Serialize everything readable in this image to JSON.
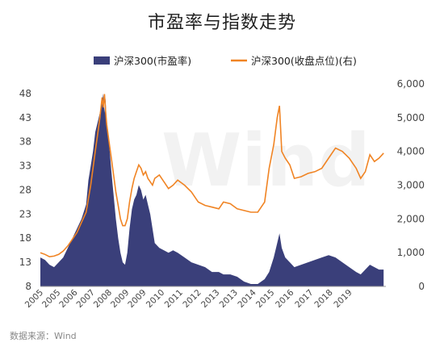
{
  "chart_data": {
    "type": "area+line",
    "title": "市盈率与指数走势",
    "source": "数据来源：Wind",
    "watermark": "Wind",
    "legend": {
      "placement": "top-center",
      "entries": [
        {
          "name": "沪深300(市盈率)",
          "color": "#3a3f7a",
          "kind": "area",
          "axis": "left"
        },
        {
          "name": "沪深300(收盘点位)(右)",
          "color": "#f08424",
          "kind": "line",
          "axis": "right"
        }
      ]
    },
    "y_left": {
      "ticks": [
        "48",
        "43",
        "38",
        "33",
        "28",
        "23",
        "18",
        "13",
        "8"
      ],
      "range": [
        8,
        50
      ]
    },
    "y_right": {
      "ticks": [
        "6,000",
        "5,000",
        "4,000",
        "3,000",
        "2,000",
        "1,000",
        "0"
      ],
      "range": [
        0,
        6000
      ]
    },
    "x_axis": {
      "range": [
        2005.0,
        2020.1
      ],
      "tick_labels": [
        "2005",
        "2005",
        "2006",
        "2007",
        "2008",
        "2009",
        "2009",
        "2010",
        "2011",
        "2012",
        "2013",
        "2013",
        "2014",
        "2015",
        "2016",
        "2017",
        "2018",
        "2019"
      ],
      "tick_positions": [
        2005.0,
        2005.75,
        2006.5,
        2007.25,
        2008.0,
        2008.75,
        2009.5,
        2010.3,
        2011.1,
        2011.9,
        2012.7,
        2013.5,
        2014.3,
        2015.1,
        2015.95,
        2016.8,
        2017.65,
        2018.5
      ]
    },
    "grid": false,
    "series": [
      {
        "name": "沪深300(市盈率)",
        "axis": "left",
        "x": [
          2005.0,
          2005.2,
          2005.4,
          2005.6,
          2005.8,
          2006.0,
          2006.2,
          2006.4,
          2006.6,
          2006.8,
          2007.0,
          2007.1,
          2007.2,
          2007.3,
          2007.4,
          2007.5,
          2007.6,
          2007.7,
          2007.75,
          2007.8,
          2007.85,
          2007.9,
          2008.0,
          2008.1,
          2008.2,
          2008.3,
          2008.4,
          2008.5,
          2008.6,
          2008.7,
          2008.8,
          2008.9,
          2009.0,
          2009.1,
          2009.2,
          2009.3,
          2009.4,
          2009.5,
          2009.6,
          2009.7,
          2009.8,
          2009.9,
          2010.0,
          2010.2,
          2010.4,
          2010.6,
          2010.8,
          2011.0,
          2011.3,
          2011.6,
          2011.9,
          2012.2,
          2012.5,
          2012.8,
          2013.0,
          2013.3,
          2013.6,
          2013.9,
          2014.2,
          2014.5,
          2014.8,
          2015.0,
          2015.2,
          2015.35,
          2015.45,
          2015.55,
          2015.7,
          2015.9,
          2016.1,
          2016.4,
          2016.7,
          2017.0,
          2017.3,
          2017.6,
          2017.9,
          2018.2,
          2018.5,
          2018.8,
          2019.0,
          2019.2,
          2019.4,
          2019.6,
          2019.8,
          2020.0
        ],
        "values": [
          14,
          13.5,
          12.5,
          12,
          13,
          14,
          16,
          18,
          20,
          22,
          25,
          30,
          33,
          36,
          40,
          42,
          44,
          46,
          48,
          44,
          47,
          41,
          38,
          32,
          27,
          22,
          18,
          15,
          13,
          12.5,
          15,
          20,
          24,
          26,
          27,
          29,
          28,
          26,
          27,
          25,
          23,
          20,
          17,
          16,
          15.5,
          15,
          15.5,
          15,
          14,
          13,
          12.5,
          12,
          11,
          11,
          10.5,
          10.5,
          10,
          9,
          8.5,
          8.5,
          9.5,
          11,
          14,
          17,
          19,
          16,
          14,
          13,
          12,
          12.5,
          13,
          13.5,
          14,
          14.5,
          14,
          13,
          12,
          11,
          10.5,
          11.5,
          12.5,
          12,
          11.5,
          11.5
        ]
      },
      {
        "name": "沪深300(收盘点位)(右)",
        "axis": "right",
        "x": [
          2005.0,
          2005.2,
          2005.4,
          2005.6,
          2005.8,
          2006.0,
          2006.2,
          2006.4,
          2006.6,
          2006.8,
          2007.0,
          2007.1,
          2007.2,
          2007.3,
          2007.4,
          2007.5,
          2007.6,
          2007.7,
          2007.75,
          2007.8,
          2007.85,
          2007.9,
          2008.0,
          2008.1,
          2008.2,
          2008.3,
          2008.4,
          2008.5,
          2008.6,
          2008.7,
          2008.8,
          2008.9,
          2009.0,
          2009.1,
          2009.2,
          2009.3,
          2009.4,
          2009.5,
          2009.6,
          2009.7,
          2009.8,
          2009.9,
          2010.0,
          2010.2,
          2010.4,
          2010.6,
          2010.8,
          2011.0,
          2011.3,
          2011.6,
          2011.9,
          2012.2,
          2012.5,
          2012.8,
          2013.0,
          2013.3,
          2013.6,
          2013.9,
          2014.2,
          2014.5,
          2014.8,
          2015.0,
          2015.2,
          2015.35,
          2015.45,
          2015.55,
          2015.7,
          2015.9,
          2016.1,
          2016.4,
          2016.7,
          2017.0,
          2017.3,
          2017.6,
          2017.9,
          2018.2,
          2018.5,
          2018.8,
          2019.0,
          2019.2,
          2019.4,
          2019.6,
          2019.8,
          2020.0
        ],
        "values": [
          1000,
          950,
          880,
          900,
          950,
          1050,
          1200,
          1400,
          1600,
          1900,
          2200,
          2600,
          3000,
          3500,
          4000,
          4500,
          5000,
          5600,
          5300,
          5700,
          5200,
          4800,
          4300,
          3800,
          3300,
          2800,
          2400,
          2000,
          1800,
          1800,
          2000,
          2500,
          2900,
          3200,
          3400,
          3600,
          3500,
          3300,
          3400,
          3200,
          3100,
          3000,
          3200,
          3300,
          3100,
          2900,
          3000,
          3150,
          3000,
          2800,
          2500,
          2400,
          2350,
          2300,
          2500,
          2450,
          2300,
          2250,
          2200,
          2200,
          2500,
          3500,
          4200,
          5000,
          5350,
          4000,
          3800,
          3600,
          3200,
          3250,
          3350,
          3400,
          3500,
          3800,
          4100,
          4000,
          3800,
          3500,
          3200,
          3400,
          3900,
          3700,
          3800,
          3950
        ]
      }
    ]
  }
}
